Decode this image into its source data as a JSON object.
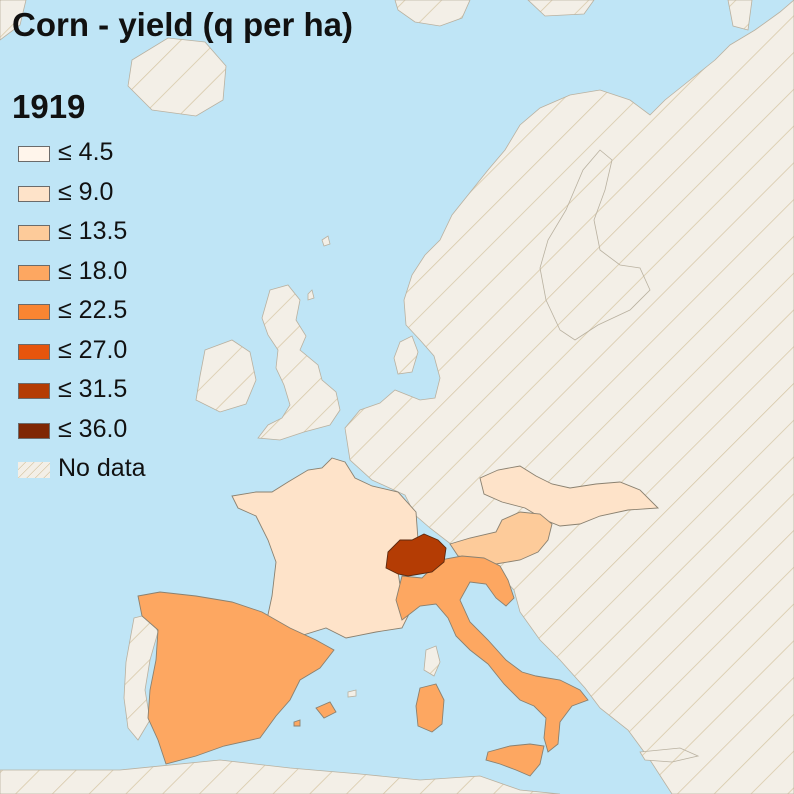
{
  "title": "Corn - yield (q per ha)",
  "year": "1919",
  "colors": {
    "water": "#bfe5f6",
    "land_nodata": "#f3efe7",
    "hatch": "#d8c9a9",
    "border": "#8a8170"
  },
  "legend": [
    {
      "label": "≤ 4.5",
      "color": "#fff5eb"
    },
    {
      "label": "≤ 9.0",
      "color": "#fee3c9"
    },
    {
      "label": "≤ 13.5",
      "color": "#fdcb9a"
    },
    {
      "label": "≤ 18.0",
      "color": "#fda761"
    },
    {
      "label": "≤ 22.5",
      "color": "#f98532"
    },
    {
      "label": "≤ 27.0",
      "color": "#e6550d"
    },
    {
      "label": "≤ 31.5",
      "color": "#b43c04"
    },
    {
      "label": "≤ 36.0",
      "color": "#7f2704"
    },
    {
      "label": "No data",
      "color": "hatch"
    }
  ],
  "regions": [
    {
      "name": "France",
      "class": "≤ 9.0"
    },
    {
      "name": "Czechoslovakia",
      "class": "≤ 9.0"
    },
    {
      "name": "Austria",
      "class": "≤ 13.5"
    },
    {
      "name": "Spain",
      "class": "≤ 18.0"
    },
    {
      "name": "Italy",
      "class": "≤ 18.0"
    },
    {
      "name": "Switzerland",
      "class": "≤ 31.5"
    }
  ]
}
